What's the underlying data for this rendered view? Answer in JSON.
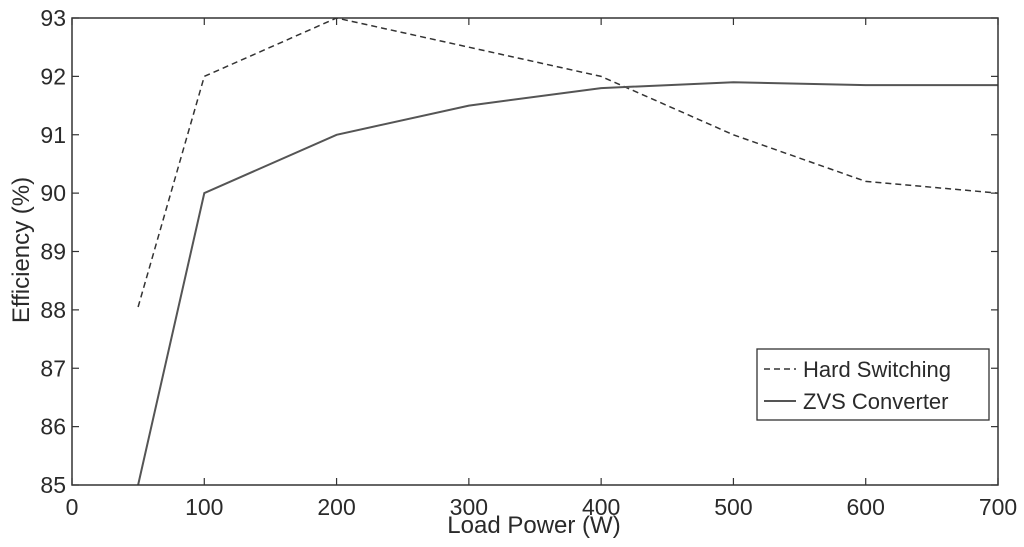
{
  "chart_data": {
    "type": "line",
    "title": "",
    "xlabel": "Load Power (W)",
    "ylabel": "Efficiency (%)",
    "xlim": [
      0,
      700
    ],
    "ylim": [
      85,
      93
    ],
    "xticks": [
      "0",
      "100",
      "200",
      "300",
      "400",
      "500",
      "600",
      "700"
    ],
    "yticks": [
      "85",
      "86",
      "87",
      "88",
      "89",
      "90",
      "91",
      "92",
      "93"
    ],
    "grid": false,
    "legend_position": "bottom-right",
    "series": [
      {
        "name": "Hard Switching",
        "style": "dashed",
        "color": "#333333",
        "points": [
          [
            50,
            88.05
          ],
          [
            100,
            92.0
          ],
          [
            200,
            93.0
          ],
          [
            300,
            92.5
          ],
          [
            400,
            92.0
          ],
          [
            500,
            91.0
          ],
          [
            600,
            90.2
          ],
          [
            700,
            90.0
          ]
        ]
      },
      {
        "name": "ZVS Converter",
        "style": "solid",
        "color": "#555555",
        "points": [
          [
            50,
            85.0
          ],
          [
            100,
            90.0
          ],
          [
            200,
            91.0
          ],
          [
            300,
            91.5
          ],
          [
            400,
            91.8
          ],
          [
            500,
            91.9
          ],
          [
            600,
            91.85
          ],
          [
            700,
            91.85
          ]
        ]
      }
    ]
  }
}
